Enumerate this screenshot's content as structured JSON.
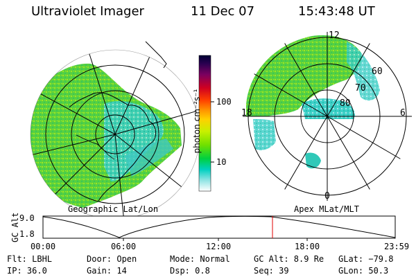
{
  "header": {
    "instrument": "Ultraviolet Imager",
    "date": "11 Dec 07",
    "time": "15:43:48 UT"
  },
  "left_panel": {
    "caption": "Geographic Lat/Lon"
  },
  "right_panel": {
    "caption": "Apex MLat/MLT",
    "mlt_labels": {
      "top": "12",
      "left": "18",
      "right": "6",
      "bottom": "0"
    },
    "lat_labels": [
      "60",
      "70",
      "80"
    ]
  },
  "colorbar": {
    "unit_label": "photon cm⁻²s⁻¹",
    "ticks": [
      "100",
      "10"
    ],
    "colors": [
      "#000033",
      "#2a0050",
      "#5a0070",
      "#8a0050",
      "#c8001a",
      "#ff3000",
      "#ff8000",
      "#ffd000",
      "#c8f000",
      "#70e000",
      "#00d040",
      "#00d0c0",
      "#80e0e0",
      "#ffffff"
    ]
  },
  "timeline": {
    "ylabel": "GC Alt",
    "ymax": "9.0",
    "ymin": "1.8",
    "ticks": [
      "00:00",
      "06:00",
      "12:00",
      "18:00",
      "23:59"
    ],
    "marker_color": "#e00000"
  },
  "info": {
    "filter": "Flt: LBHL",
    "door": "Door: Open",
    "mode": "Mode: Normal",
    "gc_alt": "GC Alt: 8.9 Re",
    "glat": "GLat: −79.8",
    "ip": "IP: 36.0",
    "gain": "Gain: 14",
    "dsp": "Dsp:    0.8",
    "seq": "Seq: 39",
    "glon": "GLon:  50.3"
  }
}
